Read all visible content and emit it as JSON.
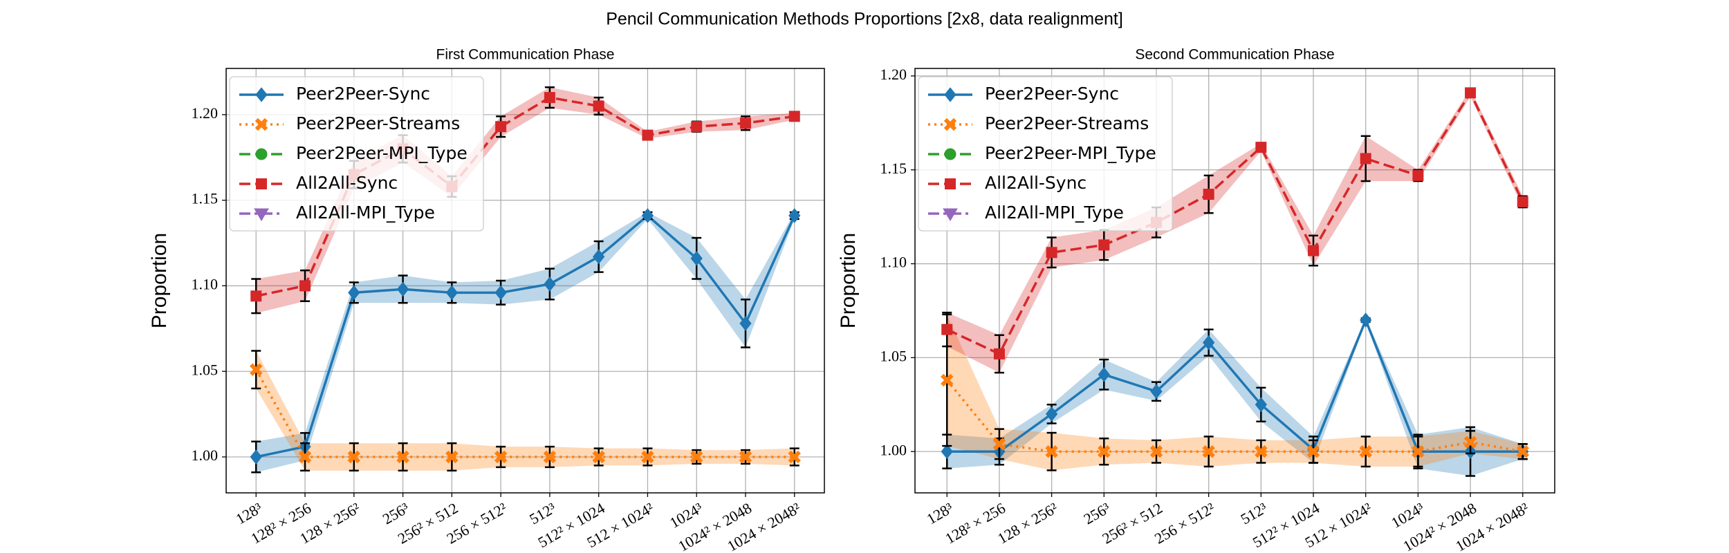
{
  "title": "Pencil Communication Methods Proportions [2x8, data realignment]",
  "chart_data": [
    {
      "type": "line",
      "title": "First Communication Phase",
      "ylabel": "Proportion",
      "categories": [
        "128³",
        "128² × 256",
        "128 × 256²",
        "256³",
        "256² × 512",
        "256 × 512²",
        "512³",
        "512² × 1024",
        "512 × 1024²",
        "1024³",
        "1024² × 2048",
        "1024 × 2048²"
      ],
      "ylim": [
        0.979,
        1.227
      ],
      "yticks": [
        {
          "value": 1.0,
          "label": "1.00"
        },
        1.05,
        {
          "value": 1.1,
          "label": "1.10"
        },
        1.15,
        {
          "value": 1.2,
          "label": "1.20"
        }
      ],
      "grid": true,
      "legend": "upper left",
      "series": [
        {
          "name": "Peer2Peer-Sync",
          "color": "#1f77b4",
          "marker": "diamond",
          "linestyle": "solid",
          "values": [
            1.0,
            1.006,
            1.096,
            1.098,
            1.096,
            1.096,
            1.101,
            1.117,
            1.141,
            1.116,
            1.078,
            1.141
          ],
          "errors": [
            0.009,
            0.008,
            0.006,
            0.008,
            0.006,
            0.007,
            0.009,
            0.009,
            0.002,
            0.012,
            0.014,
            0.002
          ]
        },
        {
          "name": "Peer2Peer-Streams",
          "color": "#ff7f0e",
          "marker": "x",
          "linestyle": "dotted",
          "values": [
            1.051,
            1.0,
            1.0,
            1.0,
            1.0,
            1.0,
            1.0,
            1.0,
            1.0,
            1.0,
            1.0,
            1.0
          ],
          "errors": [
            0.011,
            0.008,
            0.008,
            0.008,
            0.008,
            0.006,
            0.006,
            0.005,
            0.005,
            0.004,
            0.004,
            0.005
          ]
        },
        {
          "name": "Peer2Peer-MPI_Type",
          "color": "#2ca02c",
          "marker": "circle",
          "linestyle": "dashed",
          "values": [
            null,
            null,
            null,
            null,
            null,
            null,
            null,
            null,
            null,
            null,
            null,
            null
          ],
          "errors": [
            null,
            null,
            null,
            null,
            null,
            null,
            null,
            null,
            null,
            null,
            null,
            null
          ]
        },
        {
          "name": "All2All-Sync",
          "color": "#d62728",
          "marker": "square",
          "linestyle": "dashed",
          "values": [
            1.094,
            1.1,
            1.165,
            1.18,
            1.158,
            1.193,
            1.21,
            1.205,
            1.188,
            1.193,
            1.195,
            1.199
          ],
          "errors": [
            0.01,
            0.009,
            0.008,
            0.008,
            0.006,
            0.006,
            0.006,
            0.005,
            0.002,
            0.003,
            0.004,
            0.002
          ]
        },
        {
          "name": "All2All-MPI_Type",
          "color": "#9467bd",
          "marker": "triangle",
          "linestyle": "dashdot",
          "values": [
            null,
            null,
            null,
            null,
            null,
            null,
            null,
            null,
            null,
            null,
            null,
            null
          ],
          "errors": [
            null,
            null,
            null,
            null,
            null,
            null,
            null,
            null,
            null,
            null,
            null,
            null
          ]
        }
      ]
    },
    {
      "type": "line",
      "title": "Second Communication Phase",
      "ylabel": "Proportion",
      "categories": [
        "128³",
        "128² × 256",
        "128 × 256²",
        "256³",
        "256² × 512",
        "256 × 512²",
        "512³",
        "512² × 1024",
        "512 × 1024²",
        "1024³",
        "1024² × 2048",
        "1024 × 2048²"
      ],
      "ylim": [
        0.978,
        1.204
      ],
      "yticks": [
        {
          "value": 1.0,
          "label": "1.00"
        },
        1.05,
        {
          "value": 1.1,
          "label": "1.10"
        },
        1.15,
        {
          "value": 1.2,
          "label": "1.20"
        }
      ],
      "grid": true,
      "legend": "upper left",
      "series": [
        {
          "name": "Peer2Peer-Sync",
          "color": "#1f77b4",
          "marker": "diamond",
          "linestyle": "solid",
          "values": [
            1.0,
            1.0,
            1.02,
            1.041,
            1.032,
            1.058,
            1.025,
            1.001,
            1.07,
            1.0,
            1.0,
            1.0
          ],
          "errors": [
            0.009,
            0.007,
            0.005,
            0.008,
            0.005,
            0.007,
            0.009,
            0.007,
            0.001,
            0.009,
            0.013,
            0.004
          ]
        },
        {
          "name": "Peer2Peer-Streams",
          "color": "#ff7f0e",
          "marker": "x",
          "linestyle": "dotted",
          "values": [
            1.038,
            1.004,
            1.0,
            1.0,
            1.0,
            1.0,
            1.0,
            1.0,
            1.0,
            1.0,
            1.005,
            1.0
          ],
          "errors": [
            0.035,
            0.008,
            0.01,
            0.007,
            0.006,
            0.008,
            0.006,
            0.006,
            0.008,
            0.008,
            0.006,
            0.004
          ]
        },
        {
          "name": "Peer2Peer-MPI_Type",
          "color": "#2ca02c",
          "marker": "circle",
          "linestyle": "dashed",
          "values": [
            null,
            null,
            null,
            null,
            null,
            null,
            null,
            null,
            null,
            null,
            null,
            null
          ],
          "errors": [
            null,
            null,
            null,
            null,
            null,
            null,
            null,
            null,
            null,
            null,
            null,
            null
          ]
        },
        {
          "name": "All2All-Sync",
          "color": "#d62728",
          "marker": "square",
          "linestyle": "dashed",
          "values": [
            1.065,
            1.052,
            1.106,
            1.11,
            1.122,
            1.137,
            1.162,
            1.107,
            1.156,
            1.147,
            1.191,
            1.133
          ],
          "errors": [
            0.009,
            0.01,
            0.008,
            0.008,
            0.008,
            0.01,
            0.002,
            0.008,
            0.012,
            0.003,
            0.002,
            0.003
          ]
        },
        {
          "name": "All2All-MPI_Type",
          "color": "#9467bd",
          "marker": "triangle",
          "linestyle": "dashdot",
          "values": [
            null,
            null,
            null,
            null,
            null,
            null,
            null,
            null,
            null,
            null,
            null,
            null
          ],
          "errors": [
            null,
            null,
            null,
            null,
            null,
            null,
            null,
            null,
            null,
            null,
            null,
            null
          ]
        }
      ]
    }
  ]
}
